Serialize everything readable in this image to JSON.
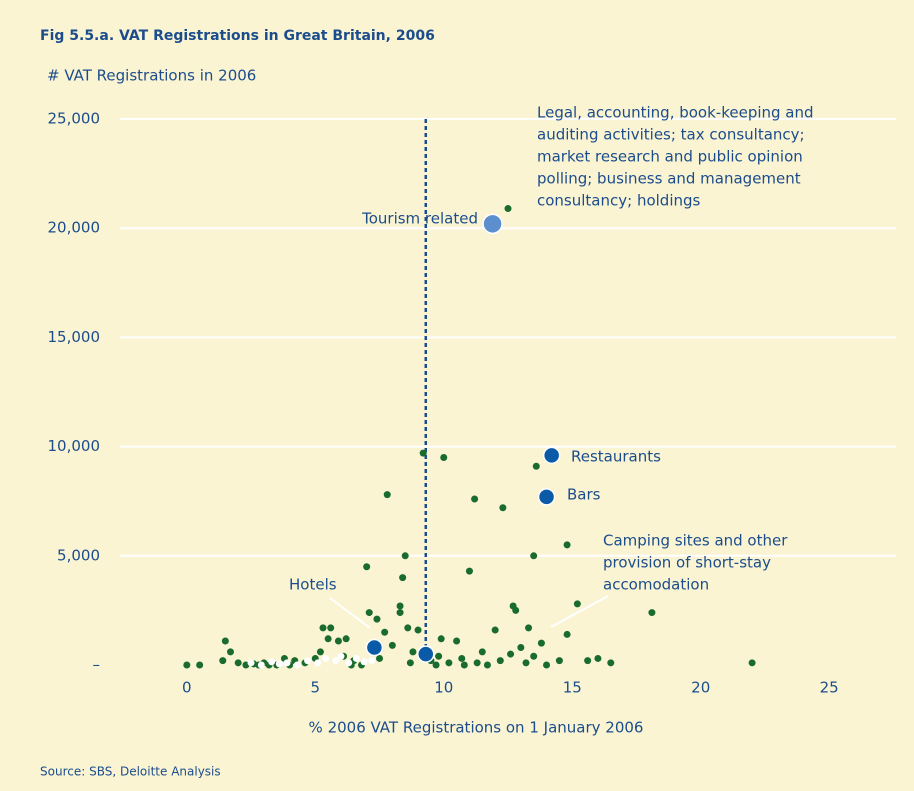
{
  "chart_data": {
    "type": "scatter",
    "title": "Fig 5.5.a. VAT Registrations in Great Britain, 2006",
    "y_label": "# VAT Registrations in 2006",
    "x_label": "% 2006 VAT Registrations on 1 January 2006",
    "source": "Source: SBS, Deloitte Analysis",
    "xlim": [
      -2.6,
      27.6
    ],
    "ylim": [
      0,
      25000
    ],
    "xticks": [
      0,
      5,
      10,
      15,
      20,
      25
    ],
    "yticks": [
      {
        "value": 0,
        "label": "–"
      },
      {
        "value": 5000,
        "label": "5,000"
      },
      {
        "value": 10000,
        "label": "10,000"
      },
      {
        "value": 15000,
        "label": "15,000"
      },
      {
        "value": 20000,
        "label": "20,000"
      },
      {
        "value": 25000,
        "label": "25,000"
      }
    ],
    "grid": true,
    "vline": 9.3,
    "series": [
      {
        "color": "#1a6b2e",
        "x": [
          0,
          0.5,
          1.5,
          1.7,
          1.4,
          2,
          2.3,
          2.6,
          3,
          3.5,
          3.8,
          4.2,
          4.6,
          5,
          5.2,
          5.3,
          5.6,
          5.5,
          5.9,
          6.2,
          6.1,
          6.5,
          6.8,
          7.0,
          7.1,
          7.4,
          7.7,
          7.8,
          8.0,
          8.3,
          8.3,
          8.4,
          8.5,
          8.6,
          8.8,
          9.0,
          9.2,
          9.5,
          9.7,
          9.9,
          10.0,
          10.2,
          10.5,
          10.7,
          11.0,
          11.2,
          11.5,
          11.7,
          12.0,
          12.3,
          12.5,
          12.6,
          12.7,
          12.8,
          13.0,
          13.3,
          13.5,
          13.5,
          13.6,
          13.8,
          14.0,
          14.5,
          14.8,
          14.8,
          15.2,
          15.6,
          16.0,
          16.5,
          18.1,
          22.0,
          10.8,
          11.3,
          7.5,
          8.7,
          9.8,
          12.2,
          13.2,
          6.4,
          3.2,
          4.0,
          2.8
        ],
        "y": [
          0,
          0,
          1100,
          600,
          200,
          100,
          0,
          50,
          100,
          0,
          300,
          200,
          100,
          300,
          600,
          1700,
          1700,
          1200,
          1100,
          1200,
          400,
          200,
          0,
          4500,
          2400,
          2100,
          1500,
          7800,
          900,
          2700,
          2400,
          4000,
          5000,
          1700,
          600,
          1600,
          9700,
          200,
          0,
          1200,
          9500,
          100,
          1100,
          300,
          4300,
          7600,
          600,
          0,
          1600,
          7200,
          20900,
          500,
          2700,
          2500,
          800,
          1700,
          5000,
          400,
          9100,
          1000,
          0,
          200,
          5500,
          1400,
          2800,
          200,
          300,
          100,
          2400,
          100,
          0,
          100,
          300,
          100,
          400,
          200,
          100,
          0,
          0,
          0,
          0
        ],
        "size": 3.5
      },
      {
        "color": "#ffffff",
        "x": [
          2.5,
          2.9,
          3.3,
          3.6,
          3.9,
          4.3,
          4.7,
          5.1,
          5.4,
          5.8,
          6.0,
          6.3,
          6.6,
          6.9,
          7.2
        ],
        "y": [
          100,
          0,
          150,
          50,
          100,
          0,
          200,
          100,
          300,
          200,
          400,
          100,
          300,
          150,
          200
        ],
        "size": 3.5
      },
      {
        "color": "#0a5aa8",
        "x": [
          7.3,
          9.3,
          14.0,
          14.2
        ],
        "y": [
          800,
          500,
          7700,
          9600
        ],
        "size": 8
      },
      {
        "color": "#5b8fce",
        "x": [
          11.9
        ],
        "y": [
          20200
        ],
        "size": 9.5
      }
    ],
    "annotations": [
      {
        "lines": [
          "Legal, accounting, book-keeping and",
          "auditing activities; tax consultancy;",
          "market research and public opinion",
          "polling; business and management",
          "consultancy; holdings"
        ]
      },
      {
        "lines": [
          "Tourism related"
        ]
      },
      {
        "lines": [
          "Restaurants"
        ]
      },
      {
        "lines": [
          "Bars"
        ]
      },
      {
        "lines": [
          "Camping sites and other",
          "provision of short-stay",
          "accomodation"
        ]
      },
      {
        "lines": [
          "Hotels"
        ]
      }
    ]
  }
}
